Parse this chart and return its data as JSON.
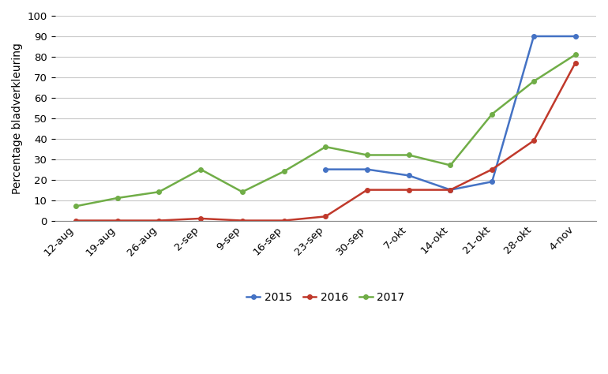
{
  "x_labels": [
    "12-aug",
    "19-aug",
    "26-aug",
    "2-sep",
    "9-sep",
    "16-sep",
    "23-sep",
    "30-sep",
    "7-okt",
    "14-okt",
    "21-okt",
    "28-okt",
    "4-nov"
  ],
  "x_indices": [
    0,
    1,
    2,
    3,
    4,
    5,
    6,
    7,
    8,
    9,
    10,
    11,
    12
  ],
  "series_2015": {
    "x": [
      6,
      7,
      8,
      9,
      10,
      11,
      12
    ],
    "y": [
      25,
      25,
      22,
      15,
      19,
      90,
      90
    ],
    "color": "#4472C4",
    "label": "2015"
  },
  "series_2016": {
    "x": [
      0,
      1,
      2,
      3,
      4,
      5,
      6,
      7,
      8,
      9,
      10,
      11,
      12
    ],
    "y": [
      0,
      0,
      0,
      1,
      0,
      0,
      2,
      15,
      15,
      15,
      25,
      39,
      77
    ],
    "color": "#C0392B",
    "label": "2016"
  },
  "series_2017": {
    "x": [
      0,
      1,
      2,
      3,
      4,
      5,
      6,
      7,
      8,
      9,
      10,
      11,
      12
    ],
    "y": [
      7,
      11,
      14,
      25,
      14,
      24,
      36,
      32,
      32,
      27,
      52,
      68,
      81
    ],
    "color": "#70AD47",
    "label": "2017"
  },
  "ylabel": "Percentage bladverkleuring",
  "ylim": [
    0,
    100
  ],
  "yticks": [
    0,
    10,
    20,
    30,
    40,
    50,
    60,
    70,
    80,
    90,
    100
  ],
  "background_color": "#ffffff",
  "grid_color": "#c8c8c8",
  "line_width": 1.8,
  "marker_size": 4,
  "font_size": 9.5,
  "ylabel_fontsize": 10
}
